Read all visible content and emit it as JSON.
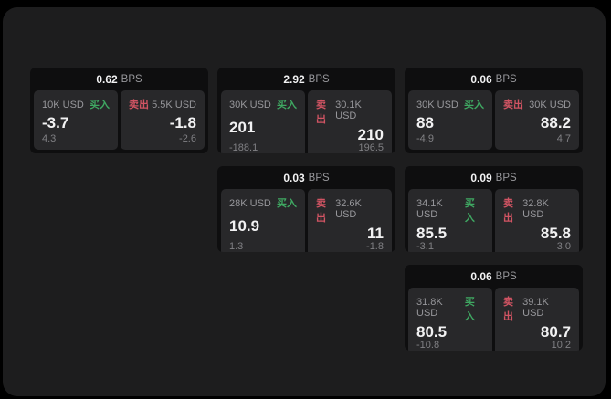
{
  "page": {
    "background": "#000000",
    "surface": "#1d1d1e"
  },
  "colors": {
    "card_bg": "#0e0e0f",
    "panel_bg": "#28282a",
    "text_primary": "#f2f2f3",
    "text_secondary": "#97979b",
    "text_tertiary": "#808084",
    "buy_green": "#3fa862",
    "sell_red": "#d15463"
  },
  "labels": {
    "bps_unit": "BPS",
    "buy": "买入",
    "sell": "卖出"
  },
  "cards": [
    {
      "bps": "0.62",
      "grid": {
        "row": 1,
        "col": 1
      },
      "buy": {
        "size": "10K USD",
        "value": "-3.7",
        "delta": "4.3"
      },
      "sell": {
        "size": "5.5K USD",
        "value": "-1.8",
        "delta": "-2.6"
      }
    },
    {
      "bps": "2.92",
      "grid": {
        "row": 1,
        "col": 2
      },
      "buy": {
        "size": "30K USD",
        "value": "201",
        "delta": "-188.1"
      },
      "sell": {
        "size": "30.1K USD",
        "value": "210",
        "delta": "196.5"
      }
    },
    {
      "bps": "0.06",
      "grid": {
        "row": 1,
        "col": 3
      },
      "buy": {
        "size": "30K USD",
        "value": "88",
        "delta": "-4.9"
      },
      "sell": {
        "size": "30K USD",
        "value": "88.2",
        "delta": "4.7"
      }
    },
    {
      "bps": "0.03",
      "grid": {
        "row": 2,
        "col": 2
      },
      "buy": {
        "size": "28K USD",
        "value": "10.9",
        "delta": "1.3"
      },
      "sell": {
        "size": "32.6K USD",
        "value": "11",
        "delta": "-1.8"
      }
    },
    {
      "bps": "0.09",
      "grid": {
        "row": 2,
        "col": 3
      },
      "buy": {
        "size": "34.1K USD",
        "value": "85.5",
        "delta": "-3.1"
      },
      "sell": {
        "size": "32.8K USD",
        "value": "85.8",
        "delta": "3.0"
      }
    },
    {
      "bps": "0.06",
      "grid": {
        "row": 3,
        "col": 3
      },
      "buy": {
        "size": "31.8K USD",
        "value": "80.5",
        "delta": "-10.8"
      },
      "sell": {
        "size": "39.1K USD",
        "value": "80.7",
        "delta": "10.2"
      }
    }
  ]
}
